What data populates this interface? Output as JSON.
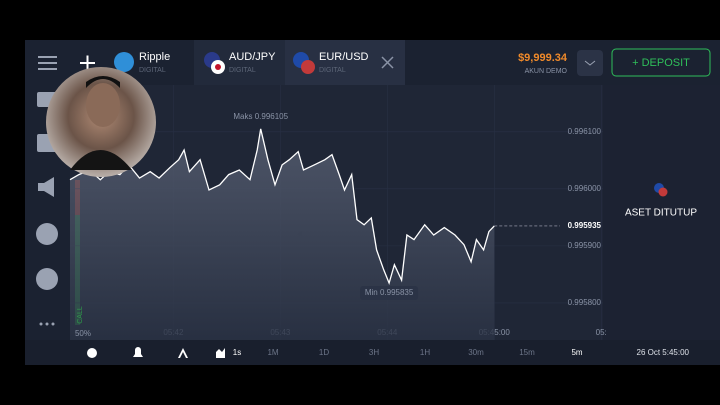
{
  "tabs": [
    {
      "name": "Ripple",
      "subtitle": "DIGITAL"
    },
    {
      "name": "AUD/JPY",
      "subtitle": "DIGITAL"
    },
    {
      "name": "EUR/USD",
      "subtitle": "DIGITAL"
    }
  ],
  "balance": "$9,999.34",
  "account_type": "AKUN DEMO",
  "deposit_button": "+ DEPOSIT",
  "chart_data": {
    "type": "line",
    "x": [
      -58,
      -53,
      -47,
      -41,
      -36,
      -30,
      -25,
      -19,
      -13,
      -8,
      -2,
      3,
      6,
      9,
      15,
      20,
      26,
      31,
      37,
      43,
      47,
      49,
      53,
      57,
      61,
      65,
      70,
      73,
      79,
      85,
      89,
      93,
      96,
      100,
      103,
      107,
      111,
      114,
      118,
      121,
      124,
      128,
      131,
      135,
      141,
      146,
      152,
      158,
      163,
      167,
      170,
      174,
      177,
      180
    ],
    "series": [
      {
        "color": "#ffffff",
        "values": [
          0.996016,
          0.996025,
          0.996033,
          0.996016,
          0.99603,
          0.996025,
          0.996042,
          0.996019,
          0.99603,
          0.996019,
          0.996037,
          0.996051,
          0.996068,
          0.99603,
          0.996051,
          0.995998,
          0.996007,
          0.996025,
          0.996033,
          0.996016,
          0.996068,
          0.996105,
          0.996051,
          0.996007,
          0.996042,
          0.996051,
          0.996065,
          0.996033,
          0.996042,
          0.996051,
          0.99606,
          0.996025,
          0.995998,
          0.996025,
          0.995946,
          0.995937,
          0.995949,
          0.995893,
          0.995858,
          0.995835,
          0.995867,
          0.99584,
          0.995919,
          0.995911,
          0.995937,
          0.995919,
          0.995932,
          0.995919,
          0.995902,
          0.995872,
          0.995911,
          0.995893,
          0.995925,
          0.995935
        ]
      }
    ],
    "xlim": [
      -58,
      241
    ],
    "ylim": [
      0.995735,
      0.996182
    ],
    "xticks": [
      {
        "value": 0,
        "label": "05:42"
      },
      {
        "value": 60,
        "label": "05:43"
      },
      {
        "value": 120,
        "label": "05:44"
      },
      {
        "value": 180,
        "label": "05:45:00"
      },
      {
        "value": 240,
        "label": "05:"
      }
    ],
    "yticks": [
      {
        "value": 0.9961,
        "label": "0.996100"
      },
      {
        "value": 0.996,
        "label": "0.996000"
      },
      {
        "value": 0.9959,
        "label": "0.995900"
      },
      {
        "value": 0.9958,
        "label": "0.995800"
      }
    ],
    "current_price": {
      "value": 0.995935,
      "label": "0.995935"
    },
    "annotations": [
      "Maks 0.996105",
      "Min 0.995835"
    ]
  },
  "sentiment_label": "50%",
  "call_label": "CALL",
  "closed_asset_label": "ASET DITUTUP",
  "timeframes": [
    "1s",
    "1M",
    "1D",
    "3H",
    "1H",
    "30m",
    "15m",
    "5m"
  ],
  "datetime": "26 Oct 5:45:00"
}
